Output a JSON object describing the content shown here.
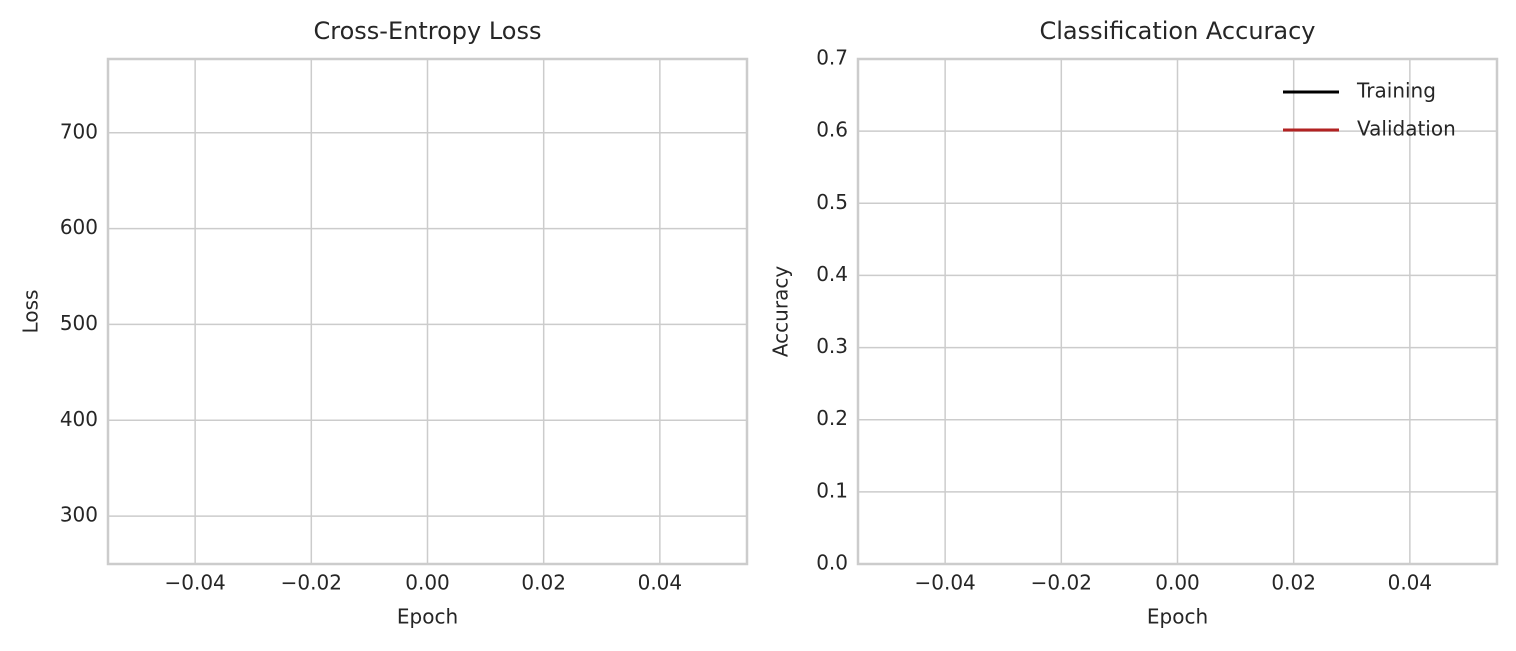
{
  "chart_data": [
    {
      "type": "line",
      "title": "Cross-Entropy Loss",
      "xlabel": "Epoch",
      "ylabel": "Loss",
      "x": [],
      "series": [],
      "xlim": [
        -0.055,
        0.055
      ],
      "xticks": [
        {
          "value": -0.04,
          "label": "−0.04"
        },
        {
          "value": -0.02,
          "label": "−0.02"
        },
        {
          "value": 0,
          "label": "0.00"
        },
        {
          "value": 0.02,
          "label": "0.02"
        },
        {
          "value": 0.04,
          "label": "0.04"
        }
      ],
      "ylim": [
        250,
        777
      ],
      "yticks": [
        300,
        400,
        500,
        600,
        700
      ],
      "grid": true
    },
    {
      "type": "line",
      "title": "Classification Accuracy",
      "xlabel": "Epoch",
      "ylabel": "Accuracy",
      "x": [],
      "series": [
        {
          "name": "Training",
          "color": "#000000",
          "values": []
        },
        {
          "name": "Validation",
          "color": "#b22222",
          "values": []
        }
      ],
      "xlim": [
        -0.055,
        0.055
      ],
      "xticks": [
        {
          "value": -0.04,
          "label": "−0.04"
        },
        {
          "value": -0.02,
          "label": "−0.02"
        },
        {
          "value": 0,
          "label": "0.00"
        },
        {
          "value": 0.02,
          "label": "0.02"
        },
        {
          "value": 0.04,
          "label": "0.04"
        }
      ],
      "ylim": [
        0,
        0.7
      ],
      "yticks": [
        {
          "value": 0,
          "label": "0.0"
        },
        0.1,
        0.2,
        0.3,
        0.4,
        0.5,
        0.6,
        0.7
      ],
      "grid": true,
      "legend": "upper right"
    }
  ]
}
